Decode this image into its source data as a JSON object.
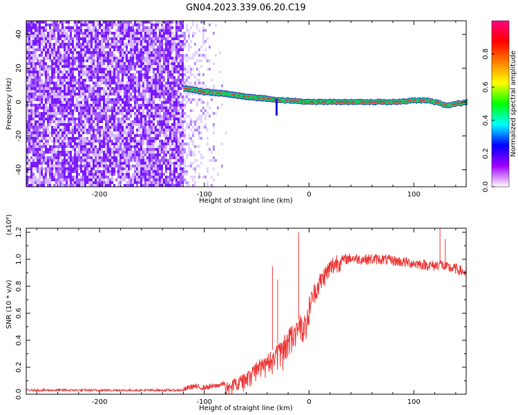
{
  "figure_title": "GN04.2023.339.06.20.C19",
  "chart_data": [
    {
      "type": "heatmap",
      "xlabel": "Height of straight line (km)",
      "ylabel": "Frequency (Hz)",
      "xlim": [
        -270,
        150
      ],
      "ylim": [
        -50,
        48
      ],
      "x_ticks": [
        -200,
        -100,
        0,
        100
      ],
      "x_tick_labels": [
        "-200",
        "-100",
        "0",
        "100"
      ],
      "y_ticks": [
        -40,
        -20,
        0,
        20,
        40
      ],
      "y_tick_labels": [
        "-40",
        "-20",
        "0",
        "20",
        "40"
      ],
      "noise_region_x": [
        -270,
        -80
      ],
      "signal_start_x": -120,
      "signal_track": {
        "x": [
          -120,
          -100,
          -80,
          -60,
          -40,
          -30,
          -20,
          0,
          20,
          40,
          60,
          80,
          100,
          110,
          120,
          130,
          140,
          150
        ],
        "freq": [
          8,
          6,
          5,
          3,
          2,
          1,
          1,
          0,
          0,
          0,
          0,
          0,
          1,
          1,
          0,
          -2,
          -1,
          0
        ]
      },
      "colorbar": {
        "label": "Normalized spectral amplitude",
        "range": [
          0,
          1
        ],
        "ticks": [
          0.0,
          0.2,
          0.4,
          0.6,
          0.8
        ],
        "tick_labels": [
          "0.0",
          "0.2",
          "0.4",
          "0.6",
          "0.8"
        ],
        "colors": [
          "#ffffff",
          "#a000ff",
          "#0000ff",
          "#00ffff",
          "#00ff00",
          "#ffff00",
          "#ff8000",
          "#ff0000",
          "#ff0080"
        ]
      }
    },
    {
      "type": "line",
      "xlabel": "Height of straight line (km)",
      "ylabel": "SNR (10 * v/v)",
      "y_scale_note": "(x10⁴)",
      "xlim": [
        -270,
        150
      ],
      "ylim": [
        0,
        1.23
      ],
      "x_ticks": [
        -200,
        -100,
        0,
        100
      ],
      "x_tick_labels": [
        "-200",
        "-100",
        "0",
        "100"
      ],
      "y_ticks": [
        0,
        0.2,
        0.4,
        0.6,
        0.8,
        1.0,
        1.2
      ],
      "y_tick_labels": [
        "0.0",
        "0.2",
        "0.4",
        "0.6",
        "0.8",
        "1.0",
        "1.2"
      ],
      "series": [
        {
          "color": "#ee3333",
          "x": [
            -270,
            -250,
            -230,
            -210,
            -190,
            -170,
            -150,
            -130,
            -120,
            -115,
            -110,
            -105,
            -100,
            -90,
            -80,
            -70,
            -60,
            -55,
            -50,
            -45,
            -40,
            -35,
            -30,
            -25,
            -20,
            -15,
            -10,
            -8,
            -5,
            0,
            5,
            10,
            15,
            20,
            25,
            30,
            35,
            40,
            50,
            60,
            70,
            80,
            90,
            100,
            110,
            120,
            125,
            130,
            140,
            150
          ],
          "y": [
            0.03,
            0.03,
            0.03,
            0.03,
            0.03,
            0.03,
            0.03,
            0.03,
            0.03,
            0.05,
            0.06,
            0.05,
            0.05,
            0.06,
            0.08,
            0.12,
            0.16,
            0.2,
            0.24,
            0.28,
            0.3,
            0.33,
            0.38,
            0.42,
            0.48,
            0.52,
            0.55,
            0.6,
            0.58,
            0.65,
            0.75,
            0.82,
            0.88,
            0.93,
            0.97,
            0.99,
            1.0,
            1.01,
            1.0,
            1.0,
            1.0,
            0.99,
            0.98,
            0.97,
            0.96,
            0.95,
            0.97,
            0.94,
            0.93,
            0.9
          ],
          "spikes": [
            {
              "x": -10,
              "y": 1.2
            },
            {
              "x": -30,
              "y": 0.85
            },
            {
              "x": -35,
              "y": 0.95
            },
            {
              "x": 125,
              "y": 1.23
            },
            {
              "x": 130,
              "y": 1.15
            }
          ]
        }
      ]
    }
  ]
}
